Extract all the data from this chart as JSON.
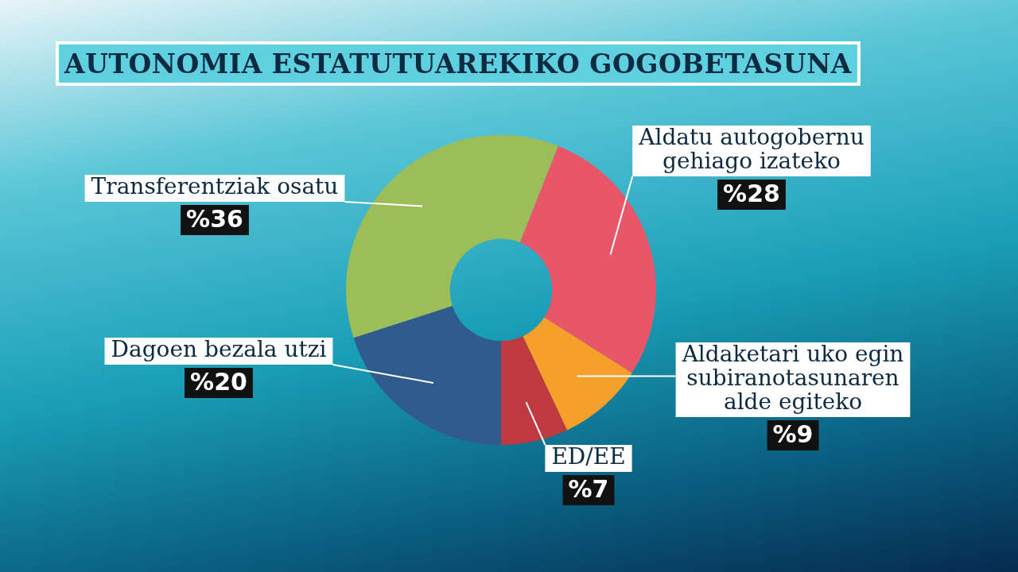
{
  "chart_data": {
    "type": "donut",
    "title": "AUTONOMIA ESTATUTUAREKIKO GOGOBETASUNA",
    "categories": [
      "Aldatu autogobernu gehiago izateko",
      "Aldaketari uko egin subiranotasunaren alde egiteko",
      "ED/EE",
      "Dagoen bezala utzi",
      "Transferentziak osatu"
    ],
    "values": [
      28,
      9,
      7,
      20,
      36
    ],
    "colors": [
      "#e8566a",
      "#f5a02a",
      "#c0393f",
      "#2f5b8f",
      "#9cbd57"
    ],
    "value_labels": [
      "%28",
      "%9",
      "%7",
      "%20",
      "%36"
    ],
    "legend": false
  }
}
